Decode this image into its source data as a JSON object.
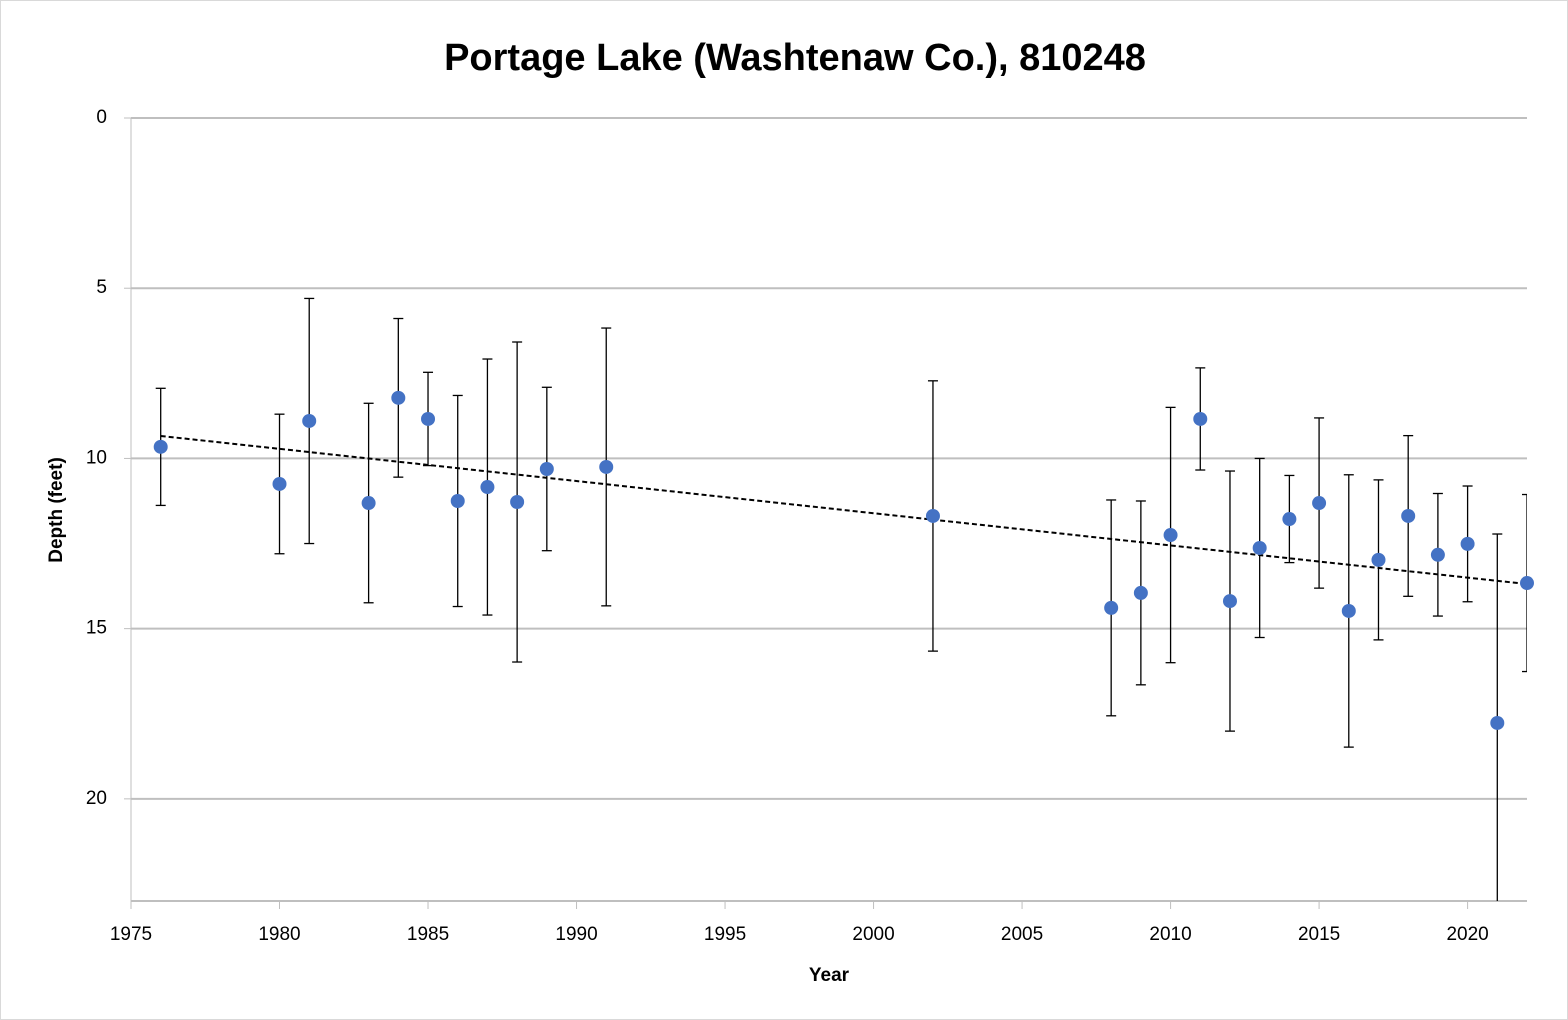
{
  "chart_data": {
    "type": "scatter",
    "title": "Portage Lake (Washtenaw Co.), 810248",
    "x_label": "Year",
    "y_label": "Depth (feet)",
    "x": [
      1976,
      1980,
      1981,
      1983,
      1984,
      1985,
      1986,
      1987,
      1988,
      1989,
      1991,
      2002,
      2008,
      2009,
      2010,
      2011,
      2012,
      2013,
      2014,
      2015,
      2016,
      2017,
      2018,
      2019,
      2020,
      2021,
      2022
    ],
    "values": [
      9.66,
      10.75,
      8.9,
      11.31,
      8.22,
      8.84,
      11.25,
      10.84,
      11.28,
      10.31,
      10.25,
      11.69,
      14.39,
      13.95,
      12.25,
      8.84,
      14.19,
      12.63,
      11.78,
      11.31,
      14.48,
      12.98,
      11.69,
      12.83,
      12.51,
      17.77,
      13.66
    ],
    "errors": [
      1.72,
      2.05,
      3.6,
      2.93,
      2.33,
      1.37,
      3.1,
      3.76,
      4.7,
      2.4,
      4.08,
      3.97,
      3.17,
      2.7,
      3.75,
      1.5,
      3.82,
      2.63,
      1.28,
      2.5,
      4.0,
      2.35,
      2.36,
      1.8,
      1.7,
      5.55,
      2.6
    ],
    "color": "#4472c4",
    "trendline": {
      "x": [
        1976,
        2022
      ],
      "values": [
        9.34,
        13.69
      ]
    },
    "xlim": [
      1975,
      2022
    ],
    "ylim": [
      0,
      23
    ],
    "y_inverted": true,
    "xticks": [
      1975,
      1980,
      1985,
      1990,
      1995,
      2000,
      2005,
      2010,
      2015,
      2020
    ],
    "yticks": [
      0,
      5,
      10,
      15,
      20
    ],
    "grid": true
  }
}
